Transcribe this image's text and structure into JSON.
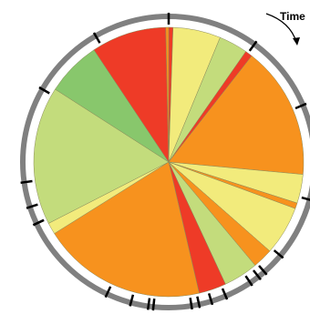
{
  "chart_data": {
    "type": "pie",
    "title": "",
    "direction_label": "Time",
    "direction": "clockwise",
    "start_angle_deg": 0,
    "colors": {
      "red": "#ee3b27",
      "yellow": "#f2eb7c",
      "lightgreen": "#c3dc7c",
      "green": "#88c76c",
      "orange": "#f7921e",
      "ring": "#808080",
      "tick": "#000000",
      "edge": "#8a8a5a"
    },
    "slices": [
      {
        "value": 1.5,
        "color": "red"
      },
      {
        "value": 16.5,
        "color": "yellow"
      },
      {
        "value": 10.0,
        "color": "lightgreen"
      },
      {
        "value": 2.5,
        "color": "red"
      },
      {
        "value": 46.0,
        "color": "orange"
      },
      {
        "value": 10.0,
        "color": "yellow"
      },
      {
        "value": 2.0,
        "color": "orange"
      },
      {
        "value": 17.0,
        "color": "yellow"
      },
      {
        "value": 7.0,
        "color": "orange"
      },
      {
        "value": 12.0,
        "color": "lightgreen"
      },
      {
        "value": 9.5,
        "color": "red"
      },
      {
        "value": 57.0,
        "color": "orange"
      },
      {
        "value": 4.0,
        "color": "yellow"
      },
      {
        "value": 48.0,
        "color": "lightgreen"
      },
      {
        "value": 19.0,
        "color": "green"
      },
      {
        "value": 26.0,
        "color": "red"
      },
      {
        "value": 1.0,
        "color": "orange"
      }
    ],
    "ticks_deg": [
      0,
      36,
      67,
      105,
      130,
      139,
      142,
      146,
      157,
      163,
      168,
      171,
      186,
      188,
      195,
      205,
      245,
      252,
      262,
      300,
      330
    ]
  }
}
